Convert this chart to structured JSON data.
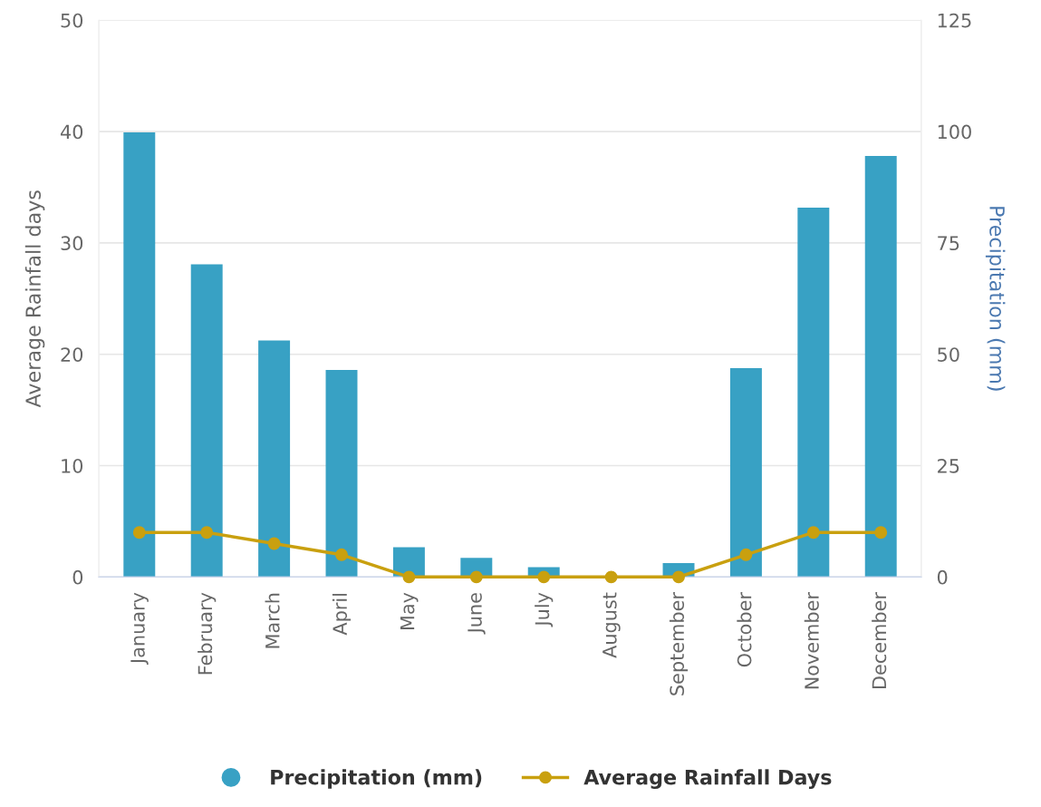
{
  "chart_data": {
    "type": "bar",
    "categories": [
      "January",
      "February",
      "March",
      "April",
      "May",
      "June",
      "July",
      "August",
      "September",
      "October",
      "November",
      "December"
    ],
    "series": [
      {
        "name": "Precipitation (mm)",
        "axis": "y2",
        "color": "#38a1c4",
        "values": [
          99.8,
          70.2,
          53.1,
          46.5,
          6.7,
          4.3,
          2.2,
          0,
          3.1,
          46.9,
          82.9,
          94.5
        ]
      },
      {
        "name": "Average Rainfall Days",
        "type": "line",
        "axis": "y",
        "color": "#c9a00f",
        "marker": "circle",
        "values": [
          4,
          4,
          3,
          2,
          0,
          0,
          0,
          0,
          0,
          2,
          4,
          4
        ]
      }
    ],
    "ylabel": "Average Rainfall days",
    "y2label": "Precipitation (mm)",
    "ylim": [
      0,
      50
    ],
    "yticks": [
      0,
      10,
      20,
      30,
      40,
      50
    ],
    "y2lim": [
      0,
      125
    ],
    "y2ticks": [
      0,
      25,
      50,
      75,
      100,
      125
    ],
    "grid": "y",
    "legend": "bottom"
  }
}
